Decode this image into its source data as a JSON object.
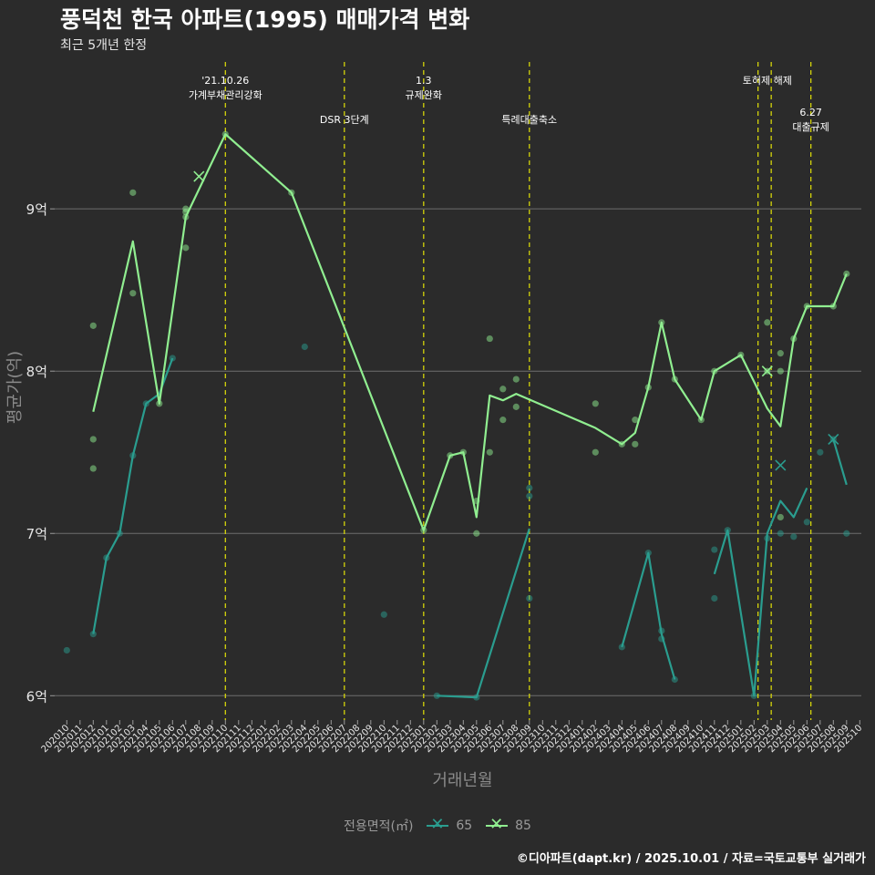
{
  "header": {
    "title": "풍덕천 한국 아파트(1995) 매매가격 변화",
    "subtitle": "최근 5개년 한정"
  },
  "footer": {
    "source": "©디아파트(dapt.kr) / 2025.10.01 / 자료=국토교통부 실거래가"
  },
  "legend": {
    "title": "전용면적(㎡)",
    "items": [
      {
        "label": "65",
        "color": "#2a9d8f"
      },
      {
        "label": "85",
        "color": "#90ee90"
      }
    ]
  },
  "chart_data": {
    "type": "line",
    "xlabel": "거래년월",
    "ylabel": "평균가(억)",
    "ylim": [
      5.85,
      9.95
    ],
    "y_ticks": [
      {
        "value": 6,
        "label": "6억"
      },
      {
        "value": 7,
        "label": "7억"
      },
      {
        "value": 8,
        "label": "8억"
      },
      {
        "value": 9,
        "label": "9억"
      }
    ],
    "x_categories": [
      "202010",
      "202011",
      "202012",
      "202101",
      "202102",
      "202103",
      "202104",
      "202105",
      "202106",
      "202107",
      "202108",
      "202109",
      "202110",
      "202111",
      "202112",
      "202201",
      "202202",
      "202203",
      "202204",
      "202205",
      "202206",
      "202207",
      "202208",
      "202209",
      "202210",
      "202211",
      "202212",
      "202301",
      "202302",
      "202303",
      "202304",
      "202305",
      "202306",
      "202307",
      "202308",
      "202309",
      "202310",
      "202311",
      "202312",
      "202401",
      "202402",
      "202403",
      "202404",
      "202405",
      "202406",
      "202407",
      "202408",
      "202409",
      "202410",
      "202411",
      "202412",
      "202501",
      "202502",
      "202503",
      "202504",
      "202505",
      "202506",
      "202507",
      "202508",
      "202509",
      "202510"
    ],
    "vlines": [
      {
        "x": 12,
        "label": "'21.10.26\n가계부채관리강화",
        "level": 0
      },
      {
        "x": 21,
        "label": "DSR 3단계",
        "level": 1
      },
      {
        "x": 27,
        "label": "1.3\n규제완화",
        "level": 0
      },
      {
        "x": 35,
        "label": "특례대출축소",
        "level": 1
      },
      {
        "x": 52.3,
        "label": "",
        "level": 0
      },
      {
        "x": 53.3,
        "label": "토허제 해제",
        "level": 0,
        "label_x": 53
      },
      {
        "x": 56.3,
        "label": "6.27\n대출규제",
        "level": 2,
        "label_x": 56.3
      }
    ],
    "series": [
      {
        "name": "65",
        "color": "#2a9d8f",
        "segments": [
          [
            [
              2,
              6.38
            ],
            [
              3,
              6.85
            ],
            [
              4,
              7.0
            ],
            [
              5,
              7.48
            ],
            [
              6,
              7.8
            ],
            [
              7,
              7.86
            ],
            [
              8,
              8.08
            ]
          ],
          [
            [
              28,
              6.0
            ],
            [
              31,
              5.99
            ],
            [
              35,
              7.03
            ]
          ],
          [
            [
              42,
              6.3
            ],
            [
              44,
              6.88
            ],
            [
              45,
              6.38
            ],
            [
              46,
              6.1
            ]
          ],
          [
            [
              49,
              6.75
            ],
            [
              50,
              7.02
            ],
            [
              52,
              6.0
            ],
            [
              53,
              7.0
            ],
            [
              54,
              7.2
            ],
            [
              55,
              7.1
            ],
            [
              56,
              7.28
            ]
          ],
          [
            [
              58,
              7.58
            ],
            [
              59,
              7.3
            ]
          ]
        ],
        "scatter": [
          [
            0,
            6.28
          ],
          [
            2,
            6.38
          ],
          [
            3,
            6.85
          ],
          [
            4,
            7.0
          ],
          [
            5,
            7.48
          ],
          [
            6,
            7.8
          ],
          [
            8,
            8.08
          ],
          [
            18,
            8.15
          ],
          [
            24,
            6.5
          ],
          [
            28,
            6.0
          ],
          [
            31,
            5.99
          ],
          [
            35,
            7.28
          ],
          [
            35,
            7.23
          ],
          [
            35,
            6.6
          ],
          [
            42,
            6.3
          ],
          [
            44,
            6.88
          ],
          [
            45,
            6.4
          ],
          [
            45,
            6.35
          ],
          [
            46,
            6.1
          ],
          [
            49,
            6.9
          ],
          [
            49,
            6.6
          ],
          [
            50,
            7.02
          ],
          [
            52,
            6.0
          ],
          [
            53,
            6.97
          ],
          [
            54,
            7.0
          ],
          [
            55,
            6.98
          ],
          [
            56,
            7.07
          ],
          [
            57,
            7.5
          ],
          [
            58,
            7.58
          ],
          [
            59,
            7.0
          ]
        ],
        "markers": [
          [
            54,
            7.42
          ],
          [
            58,
            7.58
          ]
        ]
      },
      {
        "name": "85",
        "color": "#90ee90",
        "segments": [
          [
            [
              2,
              7.75
            ],
            [
              5,
              8.8
            ],
            [
              7,
              7.8
            ],
            [
              9,
              8.95
            ],
            [
              12,
              9.46
            ],
            [
              17,
              9.1
            ],
            [
              27,
              7.02
            ],
            [
              29,
              7.48
            ],
            [
              30,
              7.5
            ],
            [
              31,
              7.1
            ],
            [
              32,
              7.85
            ],
            [
              33,
              7.82
            ],
            [
              34,
              7.86
            ],
            [
              40,
              7.65
            ],
            [
              42,
              7.55
            ],
            [
              43,
              7.62
            ],
            [
              44,
              7.9
            ],
            [
              45,
              8.3
            ],
            [
              46,
              7.95
            ],
            [
              48,
              7.7
            ],
            [
              49,
              8.0
            ],
            [
              51,
              8.1
            ],
            [
              53,
              7.77
            ],
            [
              54,
              7.66
            ],
            [
              55,
              8.2
            ],
            [
              56,
              8.4
            ],
            [
              58,
              8.4
            ],
            [
              59,
              8.6
            ]
          ]
        ],
        "scatter": [
          [
            2,
            8.28
          ],
          [
            2,
            7.58
          ],
          [
            2,
            7.4
          ],
          [
            5,
            9.1
          ],
          [
            5,
            8.48
          ],
          [
            7,
            7.8
          ],
          [
            9,
            9.0
          ],
          [
            9,
            8.98
          ],
          [
            9,
            8.95
          ],
          [
            9,
            8.76
          ],
          [
            12,
            9.46
          ],
          [
            17,
            9.1
          ],
          [
            27,
            7.02
          ],
          [
            29,
            7.48
          ],
          [
            30,
            7.5
          ],
          [
            31,
            7.2
          ],
          [
            31,
            7.0
          ],
          [
            32,
            8.2
          ],
          [
            32,
            7.5
          ],
          [
            33,
            7.89
          ],
          [
            33,
            7.7
          ],
          [
            34,
            7.95
          ],
          [
            34,
            7.78
          ],
          [
            40,
            7.8
          ],
          [
            40,
            7.5
          ],
          [
            42,
            7.55
          ],
          [
            43,
            7.55
          ],
          [
            43,
            7.7
          ],
          [
            44,
            7.9
          ],
          [
            45,
            8.3
          ],
          [
            46,
            7.95
          ],
          [
            48,
            7.7
          ],
          [
            49,
            8.0
          ],
          [
            51,
            8.1
          ],
          [
            53,
            8.3
          ],
          [
            53,
            8.0
          ],
          [
            54,
            8.11
          ],
          [
            54,
            8.0
          ],
          [
            54,
            7.1
          ],
          [
            55,
            8.2
          ],
          [
            56,
            8.4
          ],
          [
            58,
            8.4
          ],
          [
            59,
            8.6
          ]
        ],
        "markers": [
          [
            10,
            9.2
          ],
          [
            53,
            8.0
          ]
        ]
      }
    ]
  }
}
